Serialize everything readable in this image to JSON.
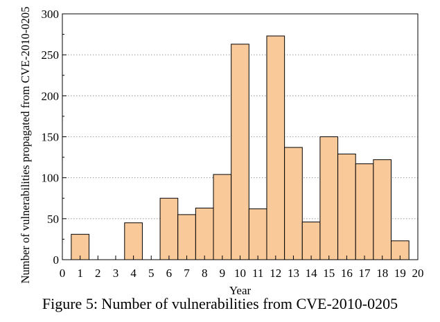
{
  "caption": "Figure 5: Number of vulnerabilities from CVE-2010-0205",
  "chart_data": {
    "type": "bar",
    "title": "",
    "xlabel": "Year",
    "ylabel": "Number of vulnerabilities propagated from CVE-2010-0205",
    "xlim": [
      0,
      20
    ],
    "ylim": [
      0,
      300
    ],
    "x_ticks": [
      0,
      1,
      2,
      3,
      4,
      5,
      6,
      7,
      8,
      9,
      10,
      11,
      12,
      13,
      14,
      15,
      16,
      17,
      18,
      19,
      20
    ],
    "y_ticks": [
      0,
      50,
      100,
      150,
      200,
      250,
      300
    ],
    "grid": "horizontal dotted",
    "x": [
      1,
      2,
      3,
      4,
      5,
      6,
      7,
      8,
      9,
      10,
      11,
      12,
      13,
      14,
      15,
      16,
      17,
      18,
      19
    ],
    "values": [
      31,
      0,
      0,
      45,
      0,
      75,
      55,
      63,
      104,
      263,
      62,
      273,
      137,
      46,
      150,
      129,
      117,
      122,
      23
    ],
    "bar_color": "#f9c99a",
    "edge_color": "#000000"
  }
}
